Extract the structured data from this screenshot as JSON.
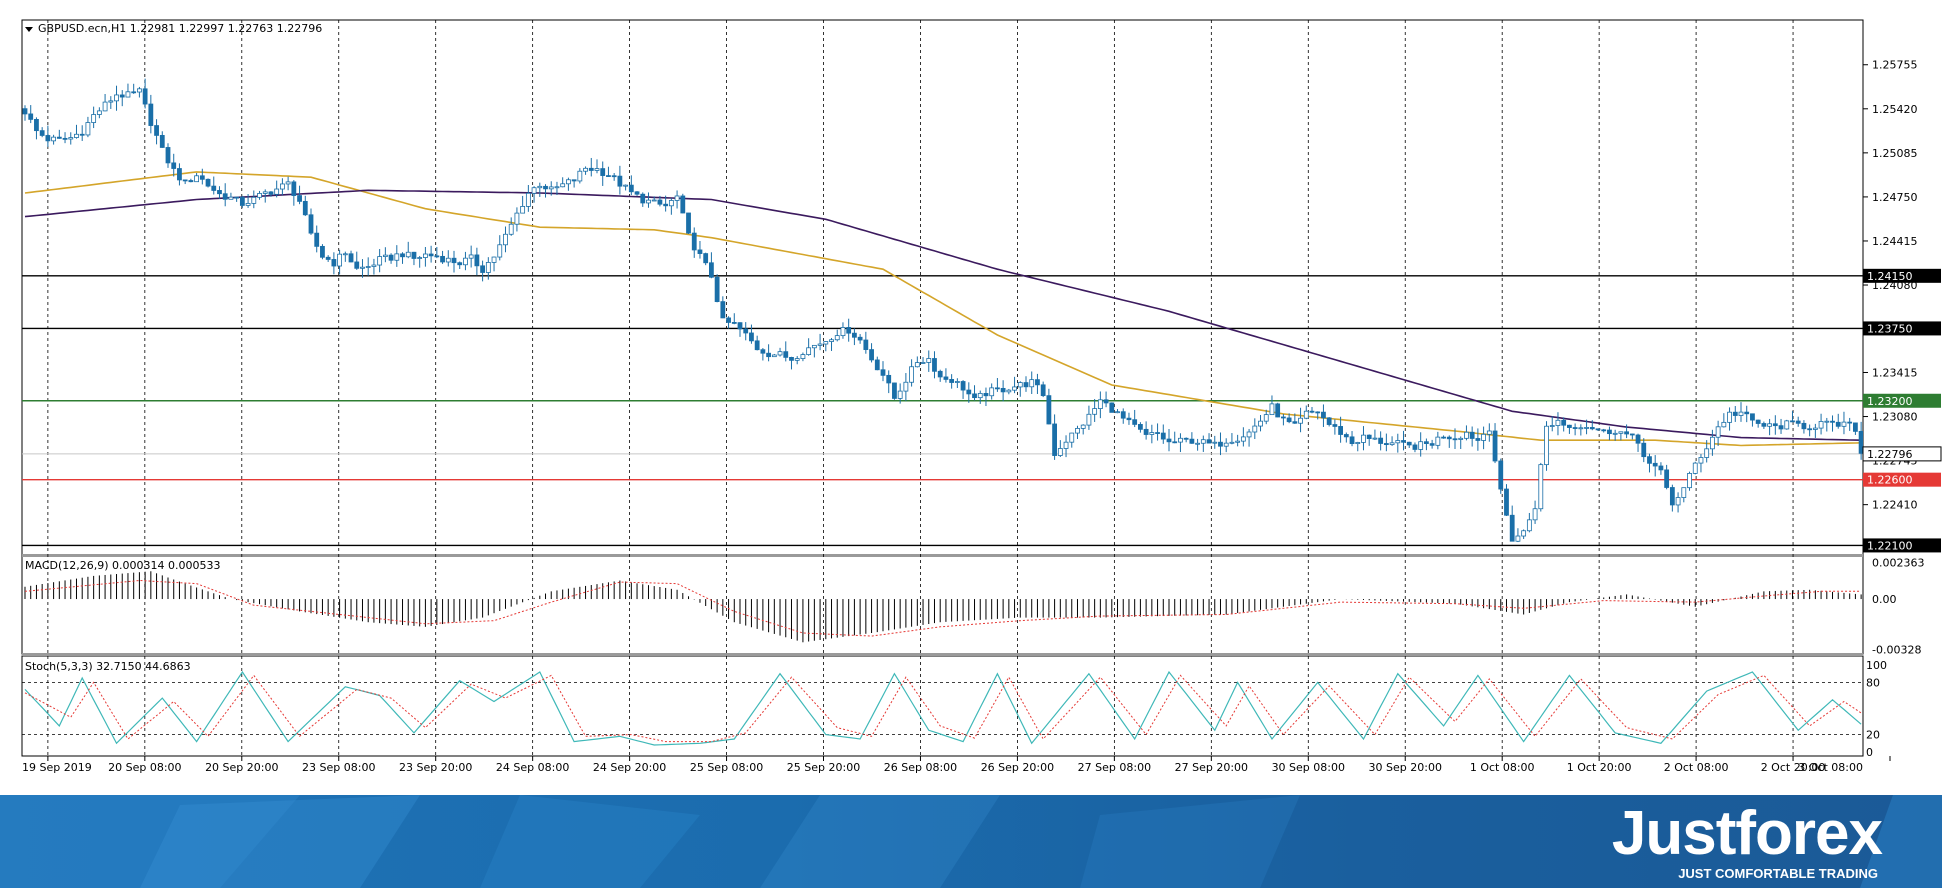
{
  "chart_data": {
    "type": "candlestick",
    "symbol_header": "GBPUSD.ecn,H1  1.22981 1.22997 1.22763 1.22796",
    "ohlc": {
      "open": 1.22981,
      "high": 1.22997,
      "low": 1.22763,
      "close": 1.22796
    },
    "price_axis_ticks": [
      "1.25755",
      "1.25420",
      "1.25085",
      "1.24750",
      "1.24415",
      "1.24080",
      "1.23415",
      "1.23080",
      "1.22745",
      "1.22410"
    ],
    "price_range": [
      1.2205,
      1.2608
    ],
    "levels": [
      {
        "value": 1.2415,
        "label": "1.24150",
        "color": "#000000"
      },
      {
        "value": 1.2375,
        "label": "1.23750",
        "color": "#000000"
      },
      {
        "value": 1.232,
        "label": "1.23200",
        "color": "#2e7d32"
      },
      {
        "value": 1.226,
        "label": "1.22600",
        "color": "#e53935"
      },
      {
        "value": 1.221,
        "label": "1.22100",
        "color": "#000000"
      }
    ],
    "current_price_label": "1.22796",
    "current_price": 1.22796,
    "time_labels": [
      "19 Sep 2019",
      "20 Sep 08:00",
      "20 Sep 20:00",
      "23 Sep 08:00",
      "23 Sep 20:00",
      "24 Sep 08:00",
      "24 Sep 20:00",
      "25 Sep 08:00",
      "25 Sep 20:00",
      "26 Sep 08:00",
      "26 Sep 20:00",
      "27 Sep 08:00",
      "27 Sep 20:00",
      "30 Sep 08:00",
      "30 Sep 20:00",
      "1 Oct 08:00",
      "1 Oct 20:00",
      "2 Oct 08:00",
      "2 Oct 20:00",
      "3 Oct 08:00"
    ],
    "close_path": [
      [
        0,
        1.254
      ],
      [
        2,
        1.2525
      ],
      [
        4,
        1.2519
      ],
      [
        6,
        1.2518
      ],
      [
        8,
        1.252
      ],
      [
        10,
        1.2525
      ],
      [
        12,
        1.2537
      ],
      [
        14,
        1.2545
      ],
      [
        16,
        1.2553
      ],
      [
        18,
        1.2552
      ],
      [
        20,
        1.2555
      ],
      [
        22,
        1.2532
      ],
      [
        24,
        1.251
      ],
      [
        26,
        1.2495
      ],
      [
        28,
        1.2485
      ],
      [
        30,
        1.2492
      ],
      [
        32,
        1.2484
      ],
      [
        34,
        1.2477
      ],
      [
        36,
        1.2474
      ],
      [
        38,
        1.247
      ],
      [
        40,
        1.2473
      ],
      [
        42,
        1.2478
      ],
      [
        44,
        1.2481
      ],
      [
        46,
        1.2485
      ],
      [
        48,
        1.2472
      ],
      [
        50,
        1.2445
      ],
      [
        52,
        1.243
      ],
      [
        54,
        1.2425
      ],
      [
        56,
        1.2433
      ],
      [
        58,
        1.242
      ],
      [
        60,
        1.2422
      ],
      [
        62,
        1.2427
      ],
      [
        64,
        1.2429
      ],
      [
        66,
        1.2432
      ],
      [
        68,
        1.2428
      ],
      [
        70,
        1.2431
      ],
      [
        72,
        1.243
      ],
      [
        74,
        1.2427
      ],
      [
        76,
        1.2425
      ],
      [
        78,
        1.2428
      ],
      [
        80,
        1.242
      ],
      [
        82,
        1.243
      ],
      [
        84,
        1.2445
      ],
      [
        86,
        1.2462
      ],
      [
        88,
        1.2478
      ],
      [
        90,
        1.2485
      ],
      [
        92,
        1.248
      ],
      [
        94,
        1.2484
      ],
      [
        96,
        1.2488
      ],
      [
        98,
        1.2497
      ],
      [
        100,
        1.2496
      ],
      [
        102,
        1.2492
      ],
      [
        104,
        1.2485
      ],
      [
        106,
        1.2478
      ],
      [
        108,
        1.2473
      ],
      [
        110,
        1.247
      ],
      [
        112,
        1.2468
      ],
      [
        114,
        1.2475
      ],
      [
        116,
        1.2445
      ],
      [
        118,
        1.243
      ],
      [
        120,
        1.2415
      ],
      [
        122,
        1.238
      ],
      [
        124,
        1.2378
      ],
      [
        126,
        1.237
      ],
      [
        128,
        1.236
      ],
      [
        130,
        1.2356
      ],
      [
        132,
        1.2355
      ],
      [
        134,
        1.2352
      ],
      [
        136,
        1.2358
      ],
      [
        138,
        1.2362
      ],
      [
        140,
        1.2366
      ],
      [
        142,
        1.2372
      ],
      [
        144,
        1.2374
      ],
      [
        146,
        1.2366
      ],
      [
        148,
        1.2352
      ],
      [
        150,
        1.234
      ],
      [
        152,
        1.2322
      ],
      [
        154,
        1.2336
      ],
      [
        156,
        1.235
      ],
      [
        158,
        1.2352
      ],
      [
        160,
        1.2338
      ],
      [
        162,
        1.2336
      ],
      [
        164,
        1.233
      ],
      [
        166,
        1.232
      ],
      [
        168,
        1.2326
      ],
      [
        170,
        1.2328
      ],
      [
        172,
        1.233
      ],
      [
        174,
        1.2332
      ],
      [
        176,
        1.2334
      ],
      [
        178,
        1.2325
      ],
      [
        180,
        1.228
      ],
      [
        182,
        1.229
      ],
      [
        184,
        1.2298
      ],
      [
        186,
        1.2308
      ],
      [
        188,
        1.232
      ],
      [
        190,
        1.2314
      ],
      [
        192,
        1.2306
      ],
      [
        194,
        1.23
      ],
      [
        196,
        1.2293
      ],
      [
        198,
        1.2295
      ],
      [
        200,
        1.2288
      ],
      [
        202,
        1.2289
      ],
      [
        204,
        1.229
      ],
      [
        206,
        1.2288
      ],
      [
        208,
        1.2286
      ],
      [
        210,
        1.229
      ],
      [
        212,
        1.2292
      ],
      [
        214,
        1.2296
      ],
      [
        216,
        1.2305
      ],
      [
        218,
        1.2315
      ],
      [
        220,
        1.2305
      ],
      [
        222,
        1.23
      ],
      [
        224,
        1.231
      ],
      [
        226,
        1.2312
      ],
      [
        228,
        1.2302
      ],
      [
        230,
        1.2296
      ],
      [
        232,
        1.2288
      ],
      [
        234,
        1.2292
      ],
      [
        236,
        1.229
      ],
      [
        238,
        1.2288
      ],
      [
        240,
        1.2287
      ],
      [
        242,
        1.2285
      ],
      [
        244,
        1.2286
      ],
      [
        246,
        1.2288
      ],
      [
        248,
        1.2294
      ],
      [
        250,
        1.2292
      ],
      [
        252,
        1.2296
      ],
      [
        254,
        1.229
      ],
      [
        256,
        1.23
      ],
      [
        258,
        1.225
      ],
      [
        260,
        1.2215
      ],
      [
        262,
        1.222
      ],
      [
        264,
        1.224
      ],
      [
        266,
        1.23
      ],
      [
        268,
        1.2305
      ],
      [
        270,
        1.23
      ],
      [
        272,
        1.2302
      ],
      [
        274,
        1.23
      ],
      [
        276,
        1.2296
      ],
      [
        278,
        1.2298
      ],
      [
        280,
        1.2294
      ],
      [
        282,
        1.2288
      ],
      [
        284,
        1.2272
      ],
      [
        286,
        1.2265
      ],
      [
        288,
        1.2242
      ],
      [
        290,
        1.2253
      ],
      [
        292,
        1.2272
      ],
      [
        294,
        1.2285
      ],
      [
        296,
        1.23
      ],
      [
        298,
        1.231
      ],
      [
        300,
        1.2311
      ],
      [
        302,
        1.2304
      ],
      [
        304,
        1.2301
      ],
      [
        306,
        1.23
      ],
      [
        308,
        1.2302
      ],
      [
        310,
        1.2302
      ],
      [
        312,
        1.23
      ],
      [
        314,
        1.2303
      ],
      [
        316,
        1.2301
      ],
      [
        318,
        1.2302
      ],
      [
        320,
        1.2299
      ],
      [
        321,
        1.228
      ]
    ],
    "ma_fast": [
      [
        0,
        1.2478
      ],
      [
        30,
        1.2494
      ],
      [
        50,
        1.249
      ],
      [
        70,
        1.2466
      ],
      [
        90,
        1.2452
      ],
      [
        110,
        1.245
      ],
      [
        120,
        1.2444
      ],
      [
        150,
        1.242
      ],
      [
        170,
        1.237
      ],
      [
        190,
        1.2332
      ],
      [
        220,
        1.231
      ],
      [
        250,
        1.2297
      ],
      [
        265,
        1.229
      ],
      [
        285,
        1.229
      ],
      [
        300,
        1.2286
      ],
      [
        321,
        1.2288
      ]
    ],
    "ma_slow": [
      [
        0,
        1.246
      ],
      [
        30,
        1.2473
      ],
      [
        60,
        1.248
      ],
      [
        90,
        1.2478
      ],
      [
        120,
        1.2473
      ],
      [
        140,
        1.2458
      ],
      [
        170,
        1.242
      ],
      [
        200,
        1.2388
      ],
      [
        230,
        1.235
      ],
      [
        260,
        1.2312
      ],
      [
        280,
        1.23
      ],
      [
        300,
        1.2292
      ],
      [
        321,
        1.229
      ]
    ],
    "macd": {
      "header": "MACD(12,26,9) 0.000314 0.000533",
      "ticks": [
        "0.002363",
        "0.00",
        "-0.00328"
      ],
      "range": [
        -0.0033,
        0.0024
      ],
      "histogram": [
        [
          0,
          0.0008
        ],
        [
          12,
          0.0015
        ],
        [
          22,
          0.0018
        ],
        [
          28,
          0.001
        ],
        [
          36,
          0.0
        ],
        [
          48,
          -0.0008
        ],
        [
          60,
          -0.0015
        ],
        [
          70,
          -0.0018
        ],
        [
          80,
          -0.0012
        ],
        [
          92,
          0.0005
        ],
        [
          104,
          0.0012
        ],
        [
          114,
          0.0006
        ],
        [
          124,
          -0.0015
        ],
        [
          136,
          -0.0028
        ],
        [
          148,
          -0.0022
        ],
        [
          160,
          -0.0015
        ],
        [
          174,
          -0.0012
        ],
        [
          188,
          -0.0012
        ],
        [
          210,
          -0.001
        ],
        [
          230,
          0.0
        ],
        [
          250,
          -0.0003
        ],
        [
          262,
          -0.001
        ],
        [
          270,
          -0.0002
        ],
        [
          280,
          0.0003
        ],
        [
          292,
          -0.0005
        ],
        [
          304,
          0.0005
        ],
        [
          312,
          0.0006
        ],
        [
          321,
          0.0003
        ]
      ],
      "signal": [
        [
          0,
          0.0005
        ],
        [
          20,
          0.0012
        ],
        [
          30,
          0.001
        ],
        [
          40,
          -0.0004
        ],
        [
          60,
          -0.0012
        ],
        [
          70,
          -0.0016
        ],
        [
          82,
          -0.0014
        ],
        [
          92,
          -0.0002
        ],
        [
          104,
          0.0011
        ],
        [
          114,
          0.001
        ],
        [
          124,
          -0.0008
        ],
        [
          136,
          -0.0022
        ],
        [
          148,
          -0.0024
        ],
        [
          160,
          -0.0018
        ],
        [
          174,
          -0.0014
        ],
        [
          188,
          -0.0011
        ],
        [
          210,
          -0.001
        ],
        [
          230,
          -0.0002
        ],
        [
          250,
          -0.0003
        ],
        [
          262,
          -0.0006
        ],
        [
          276,
          -0.0001
        ],
        [
          292,
          -0.0002
        ],
        [
          304,
          0.0002
        ],
        [
          314,
          0.0005
        ],
        [
          321,
          0.0005
        ]
      ]
    },
    "stochastic": {
      "header": "Stoch(5,3,3) 32.7150 44.6863",
      "ticks": [
        "100",
        "80",
        "20",
        "0"
      ],
      "main": [
        [
          0,
          72
        ],
        [
          6,
          30
        ],
        [
          10,
          85
        ],
        [
          16,
          10
        ],
        [
          24,
          62
        ],
        [
          30,
          12
        ],
        [
          38,
          92
        ],
        [
          46,
          12
        ],
        [
          56,
          75
        ],
        [
          62,
          65
        ],
        [
          68,
          22
        ],
        [
          76,
          82
        ],
        [
          82,
          58
        ],
        [
          90,
          92
        ],
        [
          96,
          12
        ],
        [
          104,
          18
        ],
        [
          110,
          8
        ],
        [
          118,
          10
        ],
        [
          124,
          15
        ],
        [
          132,
          90
        ],
        [
          140,
          20
        ],
        [
          146,
          15
        ],
        [
          152,
          90
        ],
        [
          158,
          25
        ],
        [
          164,
          12
        ],
        [
          170,
          90
        ],
        [
          176,
          10
        ],
        [
          186,
          90
        ],
        [
          194,
          15
        ],
        [
          200,
          92
        ],
        [
          208,
          25
        ],
        [
          212,
          80
        ],
        [
          218,
          15
        ],
        [
          226,
          80
        ],
        [
          234,
          15
        ],
        [
          240,
          90
        ],
        [
          248,
          30
        ],
        [
          254,
          88
        ],
        [
          262,
          12
        ],
        [
          270,
          88
        ],
        [
          278,
          22
        ],
        [
          286,
          10
        ],
        [
          294,
          70
        ],
        [
          302,
          92
        ],
        [
          310,
          25
        ],
        [
          316,
          60
        ],
        [
          321,
          32
        ]
      ],
      "signal": [
        [
          0,
          68
        ],
        [
          8,
          40
        ],
        [
          12,
          80
        ],
        [
          18,
          15
        ],
        [
          26,
          58
        ],
        [
          32,
          18
        ],
        [
          40,
          88
        ],
        [
          48,
          18
        ],
        [
          58,
          72
        ],
        [
          64,
          62
        ],
        [
          70,
          28
        ],
        [
          78,
          78
        ],
        [
          84,
          62
        ],
        [
          92,
          88
        ],
        [
          98,
          18
        ],
        [
          106,
          20
        ],
        [
          112,
          12
        ],
        [
          120,
          12
        ],
        [
          126,
          22
        ],
        [
          134,
          86
        ],
        [
          142,
          28
        ],
        [
          148,
          18
        ],
        [
          154,
          86
        ],
        [
          160,
          30
        ],
        [
          166,
          16
        ],
        [
          172,
          86
        ],
        [
          178,
          15
        ],
        [
          188,
          86
        ],
        [
          196,
          20
        ],
        [
          202,
          88
        ],
        [
          210,
          30
        ],
        [
          214,
          76
        ],
        [
          220,
          20
        ],
        [
          228,
          76
        ],
        [
          236,
          20
        ],
        [
          242,
          86
        ],
        [
          250,
          35
        ],
        [
          256,
          84
        ],
        [
          264,
          18
        ],
        [
          272,
          84
        ],
        [
          280,
          28
        ],
        [
          288,
          15
        ],
        [
          296,
          66
        ],
        [
          304,
          88
        ],
        [
          312,
          30
        ],
        [
          318,
          58
        ],
        [
          321,
          45
        ]
      ]
    }
  },
  "branding": {
    "name": "Justforex",
    "tagline": "JUST COMFORTABLE TRADING"
  }
}
